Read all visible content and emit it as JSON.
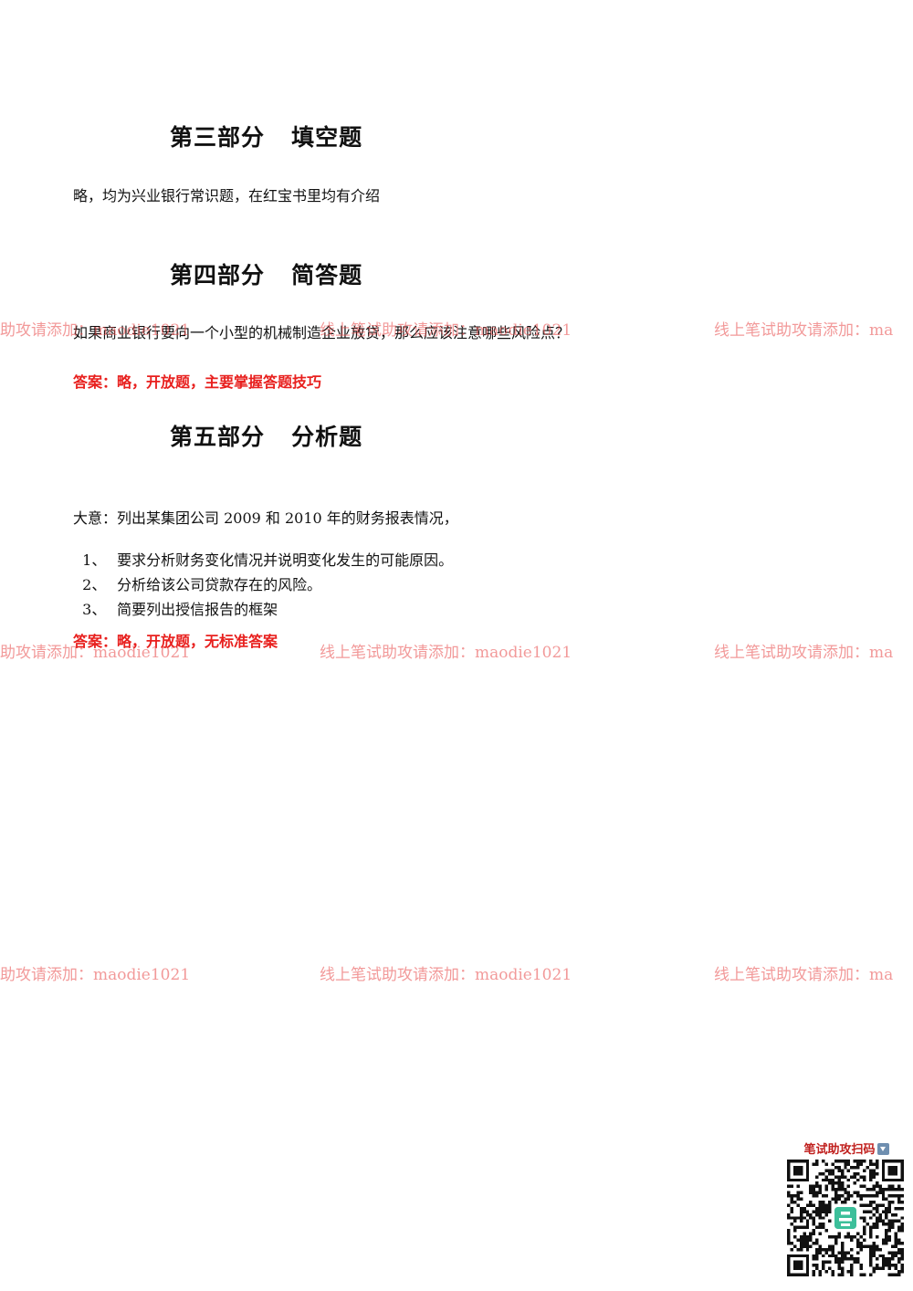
{
  "sections": {
    "part3": {
      "heading": "第三部分   填空题",
      "text": "略，均为兴业银行常识题，在红宝书里均有介绍"
    },
    "part4": {
      "heading": "第四部分   简答题",
      "question": "如果商业银行要向一个小型的机械制造企业放贷，那么应该注意哪些风险点？",
      "answer": "答案：略，开放题，主要掌握答题技巧"
    },
    "part5": {
      "heading": "第五部分   分析题",
      "intro": "大意：列出某集团公司 2009 和 2010 年的财务报表情况，",
      "items": [
        {
          "num": "1、",
          "text": "要求分析财务变化情况并说明变化发生的可能原因。"
        },
        {
          "num": "2、",
          "text": "分析给该公司贷款存在的风险。"
        },
        {
          "num": "3、",
          "text": "简要列出授信报告的框架"
        }
      ],
      "answer": "答案：略，开放题，无标准答案"
    }
  },
  "watermarks": {
    "left_partial": "助攻请添加：maodie1021",
    "center_full": "线上笔试助攻请添加：maodie1021",
    "right_partial": "线上笔试助攻请添加：ma"
  },
  "qr": {
    "caption": "笔试助攻扫码",
    "arrow_icon": "down-arrow-icon",
    "accent_color": "#3cbf9a"
  }
}
